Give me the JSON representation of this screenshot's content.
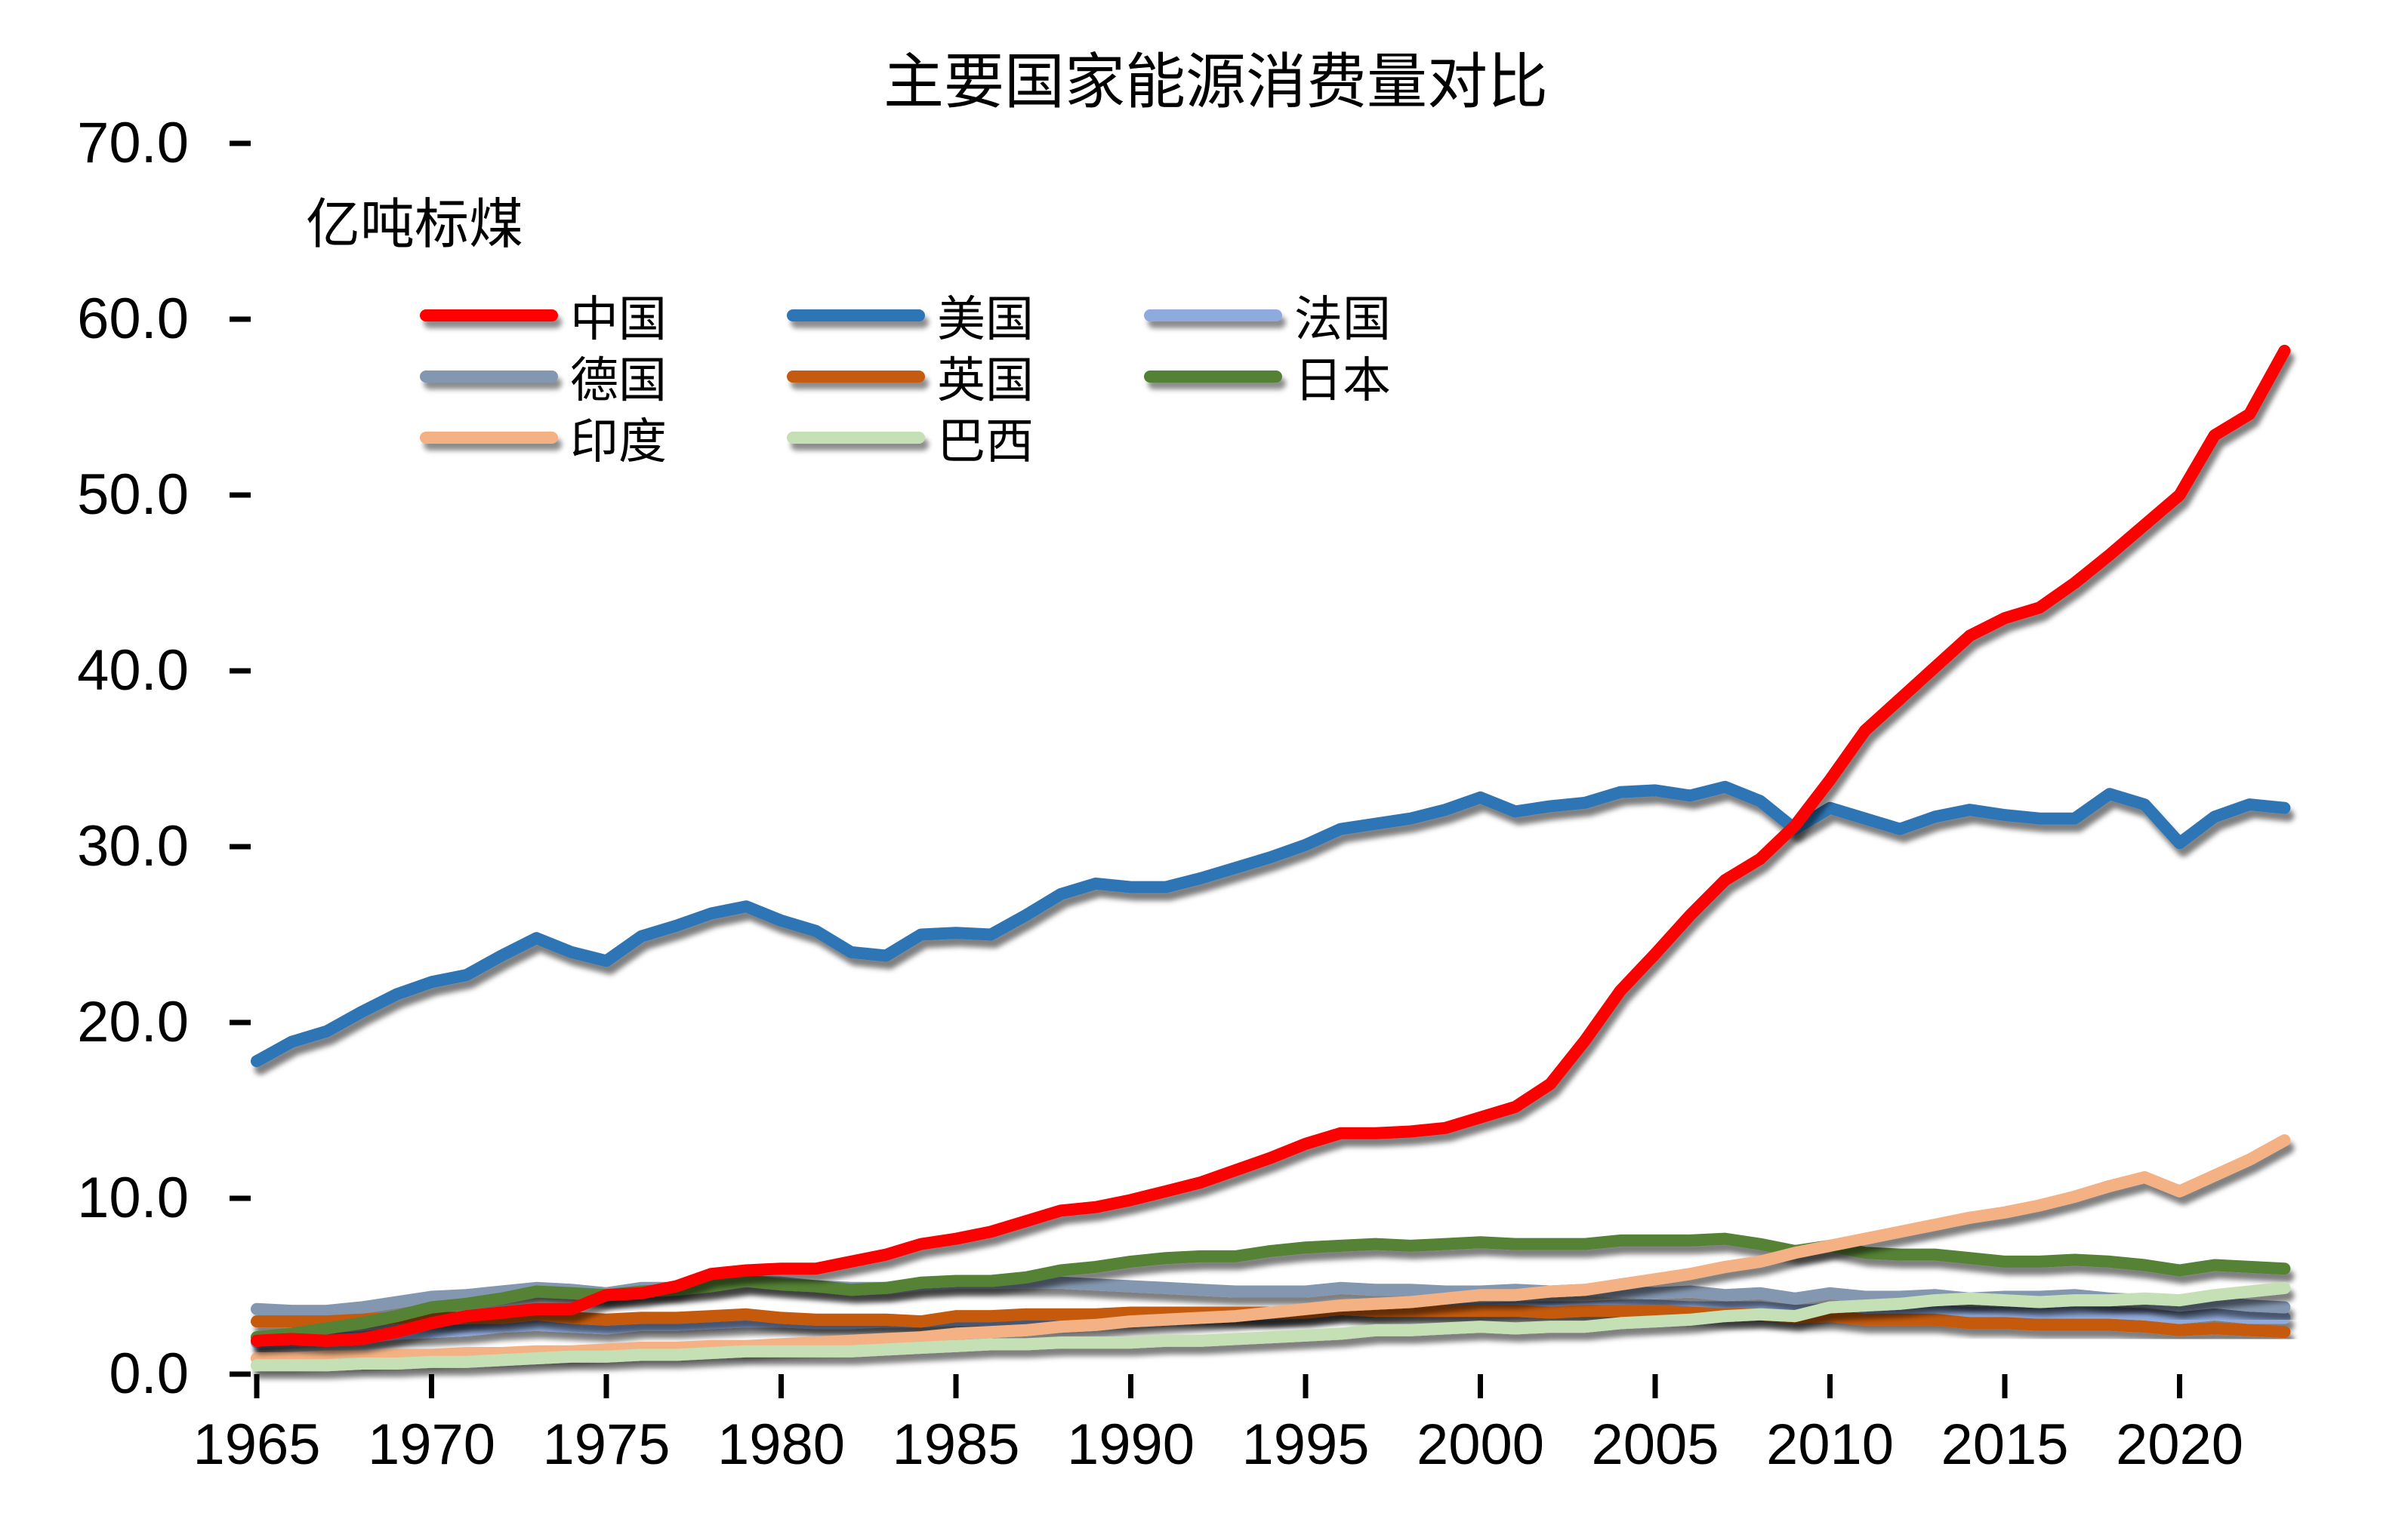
{
  "title": "主要国家能源消费量对比",
  "unit_label": "亿吨标煤",
  "axes": {
    "y_tick_labels": [
      "0.0",
      "10.0",
      "20.0",
      "30.0",
      "40.0",
      "50.0",
      "60.0",
      "70.0"
    ],
    "x_tick_labels": [
      "1965",
      "1970",
      "1975",
      "1980",
      "1985",
      "1990",
      "1995",
      "2000",
      "2005",
      "2010",
      "2015",
      "2020"
    ]
  },
  "legend": [
    {
      "key": "china",
      "label": "中国",
      "color": "#FE0000"
    },
    {
      "key": "usa",
      "label": "美国",
      "color": "#2E75B6"
    },
    {
      "key": "france",
      "label": "法国",
      "color": "#8FAADC"
    },
    {
      "key": "germany",
      "label": "德国",
      "color": "#8497B0"
    },
    {
      "key": "uk",
      "label": "英国",
      "color": "#C55A11"
    },
    {
      "key": "japan",
      "label": "日本",
      "color": "#548235"
    },
    {
      "key": "india",
      "label": "印度",
      "color": "#F4B183"
    },
    {
      "key": "brazil",
      "label": "巴西",
      "color": "#C5E0B4"
    }
  ],
  "chart_data": {
    "type": "line",
    "title": "主要国家能源消费量对比",
    "xlabel": "",
    "ylabel": "亿吨标煤",
    "ylim": [
      0,
      70
    ],
    "y_tick_step": 10,
    "grid": false,
    "legend_position": "top-left-inside",
    "x_start_year": 1965,
    "x_end_year": 2023,
    "x": [
      1965,
      1966,
      1967,
      1968,
      1969,
      1970,
      1971,
      1972,
      1973,
      1974,
      1975,
      1976,
      1977,
      1978,
      1979,
      1980,
      1981,
      1982,
      1983,
      1984,
      1985,
      1986,
      1987,
      1988,
      1989,
      1990,
      1991,
      1992,
      1993,
      1994,
      1995,
      1996,
      1997,
      1998,
      1999,
      2000,
      2001,
      2002,
      2003,
      2004,
      2005,
      2006,
      2007,
      2008,
      2009,
      2010,
      2011,
      2012,
      2013,
      2014,
      2015,
      2016,
      2017,
      2018,
      2019,
      2020,
      2021,
      2022,
      2023
    ],
    "series": [
      {
        "key": "china",
        "name": "中国",
        "color": "#FE0000",
        "values": [
          1.9,
          2.0,
          1.9,
          2.0,
          2.4,
          2.9,
          3.3,
          3.5,
          3.7,
          3.7,
          4.5,
          4.6,
          5.0,
          5.7,
          5.9,
          6.0,
          6.0,
          6.4,
          6.8,
          7.4,
          7.7,
          8.1,
          8.7,
          9.3,
          9.5,
          9.9,
          10.4,
          10.9,
          11.6,
          12.3,
          13.1,
          13.7,
          13.7,
          13.8,
          14.0,
          14.6,
          15.2,
          16.5,
          19.0,
          21.8,
          23.9,
          26.1,
          28.1,
          29.3,
          31.2,
          33.8,
          36.6,
          38.4,
          40.2,
          42.0,
          43.0,
          43.6,
          45.0,
          46.6,
          48.3,
          50.0,
          53.4,
          54.6,
          58.2
        ]
      },
      {
        "key": "usa",
        "name": "美国",
        "color": "#2E75B6",
        "values": [
          17.8,
          18.9,
          19.5,
          20.6,
          21.6,
          22.3,
          22.7,
          23.8,
          24.8,
          24.0,
          23.5,
          24.9,
          25.5,
          26.2,
          26.6,
          25.8,
          25.2,
          24.0,
          23.8,
          25.0,
          25.1,
          25.0,
          26.1,
          27.3,
          27.9,
          27.7,
          27.7,
          28.2,
          28.8,
          29.4,
          30.1,
          31.0,
          31.3,
          31.6,
          32.1,
          32.8,
          32.0,
          32.3,
          32.5,
          33.1,
          33.2,
          32.9,
          33.4,
          32.6,
          31.0,
          32.2,
          31.6,
          31.0,
          31.7,
          32.1,
          31.8,
          31.6,
          31.6,
          33.0,
          32.4,
          30.2,
          31.7,
          32.4,
          32.2
        ]
      },
      {
        "key": "france",
        "name": "法国",
        "color": "#8FAADC",
        "values": [
          1.8,
          1.9,
          2.0,
          2.1,
          2.3,
          2.4,
          2.5,
          2.7,
          2.8,
          2.7,
          2.6,
          2.8,
          2.8,
          2.9,
          3.0,
          3.0,
          2.9,
          2.9,
          3.0,
          3.0,
          3.1,
          3.1,
          3.2,
          3.2,
          3.3,
          3.3,
          3.5,
          3.5,
          3.5,
          3.4,
          3.5,
          3.7,
          3.6,
          3.7,
          3.7,
          3.7,
          3.8,
          3.8,
          3.8,
          3.9,
          3.9,
          3.8,
          3.8,
          3.8,
          3.6,
          3.7,
          3.6,
          3.6,
          3.6,
          3.5,
          3.5,
          3.5,
          3.5,
          3.5,
          3.4,
          3.2,
          3.4,
          3.2,
          3.2
        ]
      },
      {
        "key": "germany",
        "name": "德国",
        "color": "#8497B0",
        "values": [
          3.7,
          3.6,
          3.6,
          3.8,
          4.1,
          4.4,
          4.5,
          4.7,
          4.9,
          4.8,
          4.6,
          4.9,
          4.9,
          5.1,
          5.3,
          5.2,
          5.0,
          4.9,
          4.9,
          5.1,
          5.2,
          5.2,
          5.2,
          5.2,
          5.1,
          5.0,
          4.9,
          4.8,
          4.7,
          4.7,
          4.7,
          4.9,
          4.8,
          4.8,
          4.7,
          4.7,
          4.8,
          4.7,
          4.8,
          4.7,
          4.6,
          4.7,
          4.5,
          4.6,
          4.3,
          4.6,
          4.4,
          4.4,
          4.5,
          4.3,
          4.4,
          4.4,
          4.5,
          4.3,
          4.2,
          3.9,
          4.1,
          3.9,
          3.8
        ]
      },
      {
        "key": "uk",
        "name": "英国",
        "color": "#C55A11",
        "values": [
          3.0,
          3.0,
          3.0,
          3.1,
          3.2,
          3.2,
          3.2,
          3.2,
          3.4,
          3.2,
          3.1,
          3.2,
          3.2,
          3.3,
          3.4,
          3.2,
          3.1,
          3.1,
          3.1,
          3.0,
          3.3,
          3.3,
          3.4,
          3.4,
          3.4,
          3.5,
          3.5,
          3.5,
          3.5,
          3.5,
          3.5,
          3.7,
          3.6,
          3.6,
          3.6,
          3.6,
          3.6,
          3.5,
          3.6,
          3.6,
          3.6,
          3.5,
          3.4,
          3.4,
          3.2,
          3.3,
          3.1,
          3.1,
          3.1,
          2.9,
          2.9,
          2.8,
          2.8,
          2.8,
          2.7,
          2.5,
          2.6,
          2.5,
          2.4
        ]
      },
      {
        "key": "japan",
        "name": "日本",
        "color": "#548235",
        "values": [
          2.1,
          2.3,
          2.6,
          2.9,
          3.3,
          3.8,
          4.0,
          4.3,
          4.7,
          4.6,
          4.5,
          4.7,
          4.8,
          5.0,
          5.3,
          5.1,
          5.0,
          4.8,
          4.9,
          5.2,
          5.3,
          5.3,
          5.5,
          5.9,
          6.1,
          6.4,
          6.6,
          6.7,
          6.7,
          7.0,
          7.2,
          7.3,
          7.4,
          7.3,
          7.4,
          7.5,
          7.4,
          7.4,
          7.4,
          7.6,
          7.6,
          7.6,
          7.7,
          7.4,
          7.0,
          7.3,
          6.9,
          6.8,
          6.8,
          6.6,
          6.4,
          6.4,
          6.5,
          6.4,
          6.2,
          5.9,
          6.2,
          6.1,
          6.0
        ]
      },
      {
        "key": "india",
        "name": "印度",
        "color": "#F4B183",
        "values": [
          0.9,
          0.9,
          1.0,
          1.0,
          1.1,
          1.1,
          1.2,
          1.2,
          1.3,
          1.3,
          1.4,
          1.5,
          1.5,
          1.6,
          1.6,
          1.7,
          1.8,
          1.9,
          2.0,
          2.1,
          2.3,
          2.4,
          2.5,
          2.7,
          2.8,
          3.0,
          3.1,
          3.2,
          3.3,
          3.5,
          3.7,
          3.9,
          4.0,
          4.1,
          4.3,
          4.5,
          4.5,
          4.7,
          4.8,
          5.1,
          5.4,
          5.7,
          6.1,
          6.4,
          6.9,
          7.3,
          7.7,
          8.1,
          8.5,
          8.9,
          9.2,
          9.6,
          10.1,
          10.7,
          11.2,
          10.4,
          11.3,
          12.2,
          13.3
        ]
      },
      {
        "key": "brazil",
        "name": "巴西",
        "color": "#C5E0B4",
        "values": [
          0.5,
          0.5,
          0.5,
          0.6,
          0.6,
          0.7,
          0.7,
          0.8,
          0.9,
          1.0,
          1.0,
          1.1,
          1.1,
          1.2,
          1.3,
          1.3,
          1.3,
          1.3,
          1.4,
          1.5,
          1.6,
          1.7,
          1.7,
          1.8,
          1.8,
          1.8,
          1.9,
          1.9,
          2.0,
          2.1,
          2.2,
          2.3,
          2.5,
          2.5,
          2.6,
          2.7,
          2.6,
          2.7,
          2.7,
          2.9,
          3.0,
          3.1,
          3.3,
          3.4,
          3.3,
          3.8,
          3.9,
          4.0,
          4.2,
          4.3,
          4.2,
          4.1,
          4.2,
          4.2,
          4.3,
          4.2,
          4.5,
          4.7,
          4.9
        ]
      }
    ]
  }
}
